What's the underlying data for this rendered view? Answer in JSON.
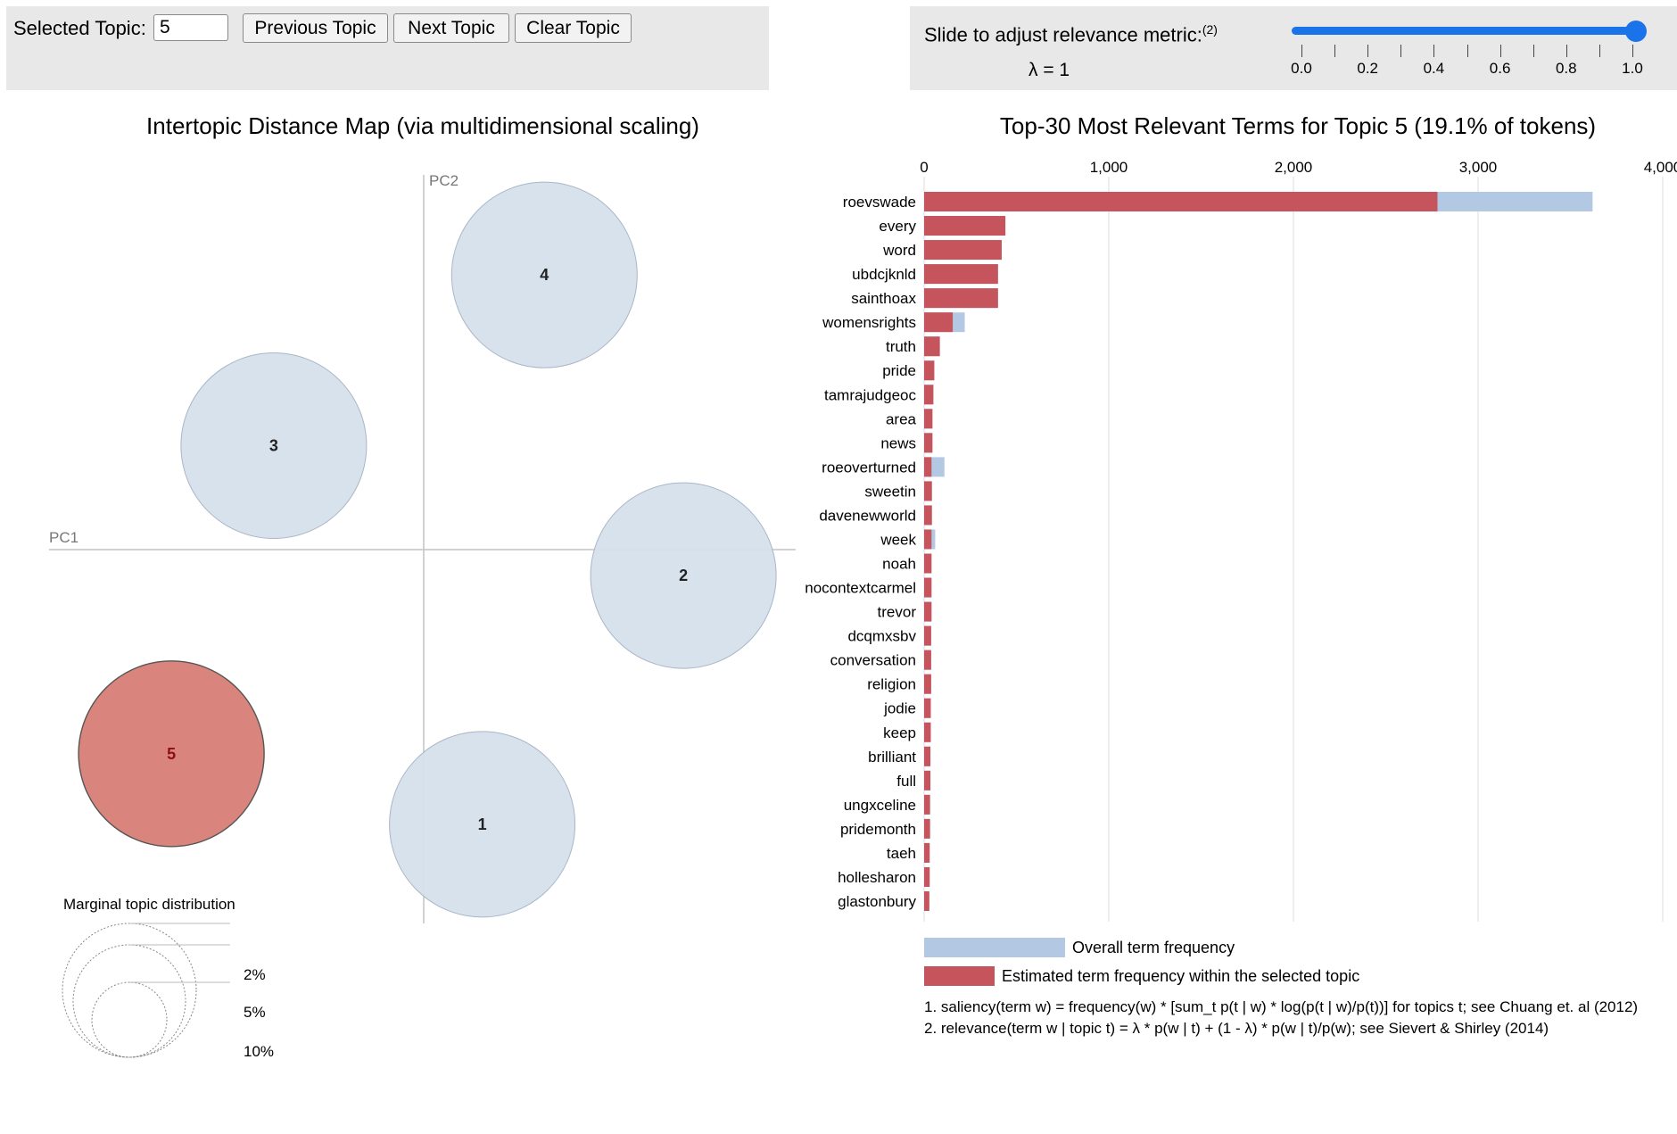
{
  "topic_controls": {
    "label": "Selected Topic:",
    "value": "5",
    "previous_label": "Previous Topic",
    "next_label": "Next Topic",
    "clear_label": "Clear Topic"
  },
  "relevance": {
    "label": "Slide to adjust relevance metric:",
    "footnote_mark": "(2)",
    "lambda_text": "λ = 1",
    "lambda_value": 1.0,
    "ticks": [
      "0.0",
      "0.2",
      "0.4",
      "0.6",
      "0.8",
      "1.0"
    ]
  },
  "colors": {
    "selected_topic": "#d9857d",
    "topic_bubble": "#d6e0ec",
    "overall_bar": "#b3c9e3",
    "topic_bar": "#c5545c"
  },
  "chart_data": [
    {
      "type": "scatter",
      "title": "Intertopic Distance Map (via multidimensional scaling)",
      "xlabel": "PC1",
      "ylabel": "PC2",
      "points": [
        {
          "topic": "1",
          "x": 0.16,
          "y": -0.74,
          "r": 0.25
        },
        {
          "topic": "2",
          "x": 0.71,
          "y": -0.07,
          "r": 0.25
        },
        {
          "topic": "3",
          "x": -0.41,
          "y": 0.28,
          "r": 0.25
        },
        {
          "topic": "4",
          "x": 0.33,
          "y": 0.74,
          "r": 0.25
        },
        {
          "topic": "5",
          "x": -0.69,
          "y": -0.55,
          "r": 0.25,
          "selected": true
        }
      ],
      "marginal_legend": {
        "title": "Marginal topic distribution",
        "labels": [
          "2%",
          "5%",
          "10%"
        ]
      }
    },
    {
      "type": "bar",
      "orientation": "horizontal",
      "title": "Top-30 Most Relevant Terms for Topic 5 (19.1% of tokens)",
      "xlim": [
        0,
        4000
      ],
      "xticks": [
        "0",
        "1,000",
        "2,000",
        "3,000",
        "4,000"
      ],
      "categories": [
        "roevswade",
        "every",
        "word",
        "ubdcjknld",
        "sainthoax",
        "womensrights",
        "truth",
        "pride",
        "tamrajudgeoc",
        "area",
        "news",
        "roeoverturned",
        "sweetin",
        "davenewworld",
        "week",
        "noah",
        "nocontextcarmel",
        "trevor",
        "dcqmxsbv",
        "conversation",
        "religion",
        "jodie",
        "keep",
        "brilliant",
        "full",
        "ungxceline",
        "pridemonth",
        "taeh",
        "hollesharon",
        "glastonbury"
      ],
      "series": [
        {
          "name": "Overall term frequency",
          "values": [
            3620,
            440,
            420,
            400,
            400,
            220,
            85,
            55,
            50,
            45,
            45,
            110,
            42,
            42,
            60,
            40,
            40,
            40,
            38,
            38,
            38,
            36,
            36,
            34,
            34,
            32,
            32,
            30,
            30,
            28
          ]
        },
        {
          "name": "Estimated term frequency within the selected topic",
          "values": [
            2780,
            440,
            420,
            400,
            400,
            155,
            85,
            55,
            50,
            45,
            45,
            40,
            42,
            42,
            40,
            40,
            40,
            40,
            38,
            38,
            38,
            36,
            36,
            34,
            34,
            32,
            32,
            30,
            30,
            28
          ]
        }
      ]
    }
  ],
  "footnotes": {
    "saliency": "1. saliency(term w) = frequency(w) * [sum_t p(t | w) * log(p(t | w)/p(t))] for topics t; see Chuang et. al (2012)",
    "relevance": "2. relevance(term w | topic t) = λ * p(w | t) + (1 - λ) * p(w | t)/p(w); see Sievert & Shirley (2014)"
  }
}
